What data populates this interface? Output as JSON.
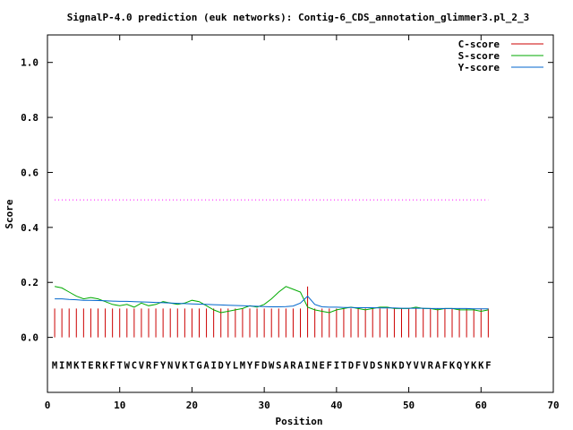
{
  "chart_data": {
    "type": "line",
    "title": "SignalP-4.0 prediction (euk networks): Contig-6_CDS_annotation_glimmer3.pl_2_3",
    "xlabel": "Position",
    "ylabel": "Score",
    "xlim": [
      0,
      70
    ],
    "ylim": [
      -0.2,
      1.1
    ],
    "xticks": [
      0,
      10,
      20,
      30,
      40,
      50,
      60,
      70
    ],
    "yticks": [
      0.0,
      0.2,
      0.4,
      0.6,
      0.8,
      1.0
    ],
    "xtick_labels": [
      "0",
      "10",
      "20",
      "30",
      "40",
      "50",
      "60",
      "70"
    ],
    "ytick_labels": [
      "0.0",
      "0.2",
      "0.4",
      "0.6",
      "0.8",
      "1.0"
    ],
    "threshold": 0.5,
    "threshold_style": "dotted magenta line",
    "legend_position": "top-right",
    "sequence": "MIMKTERKFTWCVRFYNVKTGAIDYLMYFDWSARAINEFITDFVDSNKDYVVRAFKQYKKF",
    "sequence_y": -0.1,
    "series": [
      {
        "name": "C-score",
        "color": "#cc0000",
        "style": "impulses",
        "x": [
          1,
          2,
          3,
          4,
          5,
          6,
          7,
          8,
          9,
          10,
          11,
          12,
          13,
          14,
          15,
          16,
          17,
          18,
          19,
          20,
          21,
          22,
          23,
          24,
          25,
          26,
          27,
          28,
          29,
          30,
          31,
          32,
          33,
          34,
          35,
          36,
          37,
          38,
          39,
          40,
          41,
          42,
          43,
          44,
          45,
          46,
          47,
          48,
          49,
          50,
          51,
          52,
          53,
          54,
          55,
          56,
          57,
          58,
          59,
          60,
          61
        ],
        "values": [
          0.105,
          0.105,
          0.105,
          0.105,
          0.105,
          0.105,
          0.105,
          0.105,
          0.105,
          0.105,
          0.105,
          0.105,
          0.105,
          0.105,
          0.105,
          0.105,
          0.105,
          0.105,
          0.105,
          0.105,
          0.105,
          0.105,
          0.105,
          0.105,
          0.105,
          0.105,
          0.105,
          0.105,
          0.105,
          0.105,
          0.105,
          0.105,
          0.105,
          0.105,
          0.105,
          0.185,
          0.105,
          0.105,
          0.105,
          0.105,
          0.105,
          0.105,
          0.105,
          0.105,
          0.105,
          0.105,
          0.105,
          0.105,
          0.105,
          0.105,
          0.105,
          0.105,
          0.105,
          0.105,
          0.105,
          0.105,
          0.105,
          0.105,
          0.105,
          0.105,
          0.105
        ]
      },
      {
        "name": "S-score",
        "color": "#00aa00",
        "style": "line",
        "x": [
          1,
          2,
          3,
          4,
          5,
          6,
          7,
          8,
          9,
          10,
          11,
          12,
          13,
          14,
          15,
          16,
          17,
          18,
          19,
          20,
          21,
          22,
          23,
          24,
          25,
          26,
          27,
          28,
          29,
          30,
          31,
          32,
          33,
          34,
          35,
          36,
          37,
          38,
          39,
          40,
          41,
          42,
          43,
          44,
          45,
          46,
          47,
          48,
          49,
          50,
          51,
          52,
          53,
          54,
          55,
          56,
          57,
          58,
          59,
          60,
          61
        ],
        "values": [
          0.185,
          0.18,
          0.165,
          0.15,
          0.14,
          0.145,
          0.14,
          0.13,
          0.12,
          0.115,
          0.12,
          0.11,
          0.125,
          0.115,
          0.12,
          0.13,
          0.125,
          0.12,
          0.125,
          0.135,
          0.13,
          0.115,
          0.1,
          0.09,
          0.095,
          0.1,
          0.105,
          0.115,
          0.11,
          0.12,
          0.14,
          0.165,
          0.185,
          0.175,
          0.165,
          0.11,
          0.1,
          0.095,
          0.09,
          0.1,
          0.105,
          0.11,
          0.105,
          0.1,
          0.105,
          0.11,
          0.11,
          0.105,
          0.105,
          0.105,
          0.11,
          0.105,
          0.105,
          0.1,
          0.105,
          0.105,
          0.1,
          0.1,
          0.1,
          0.095,
          0.1
        ]
      },
      {
        "name": "Y-score",
        "color": "#0066cc",
        "style": "line",
        "x": [
          1,
          2,
          3,
          4,
          5,
          6,
          7,
          8,
          9,
          10,
          11,
          12,
          13,
          14,
          15,
          16,
          17,
          18,
          19,
          20,
          21,
          22,
          23,
          24,
          25,
          26,
          27,
          28,
          29,
          30,
          31,
          32,
          33,
          34,
          35,
          36,
          37,
          38,
          39,
          40,
          41,
          42,
          43,
          44,
          45,
          46,
          47,
          48,
          49,
          50,
          51,
          52,
          53,
          54,
          55,
          56,
          57,
          58,
          59,
          60,
          61
        ],
        "values": [
          0.14,
          0.14,
          0.138,
          0.137,
          0.135,
          0.135,
          0.134,
          0.133,
          0.132,
          0.131,
          0.131,
          0.13,
          0.129,
          0.128,
          0.127,
          0.126,
          0.125,
          0.124,
          0.123,
          0.122,
          0.121,
          0.12,
          0.119,
          0.118,
          0.117,
          0.116,
          0.115,
          0.114,
          0.113,
          0.112,
          0.111,
          0.111,
          0.112,
          0.114,
          0.125,
          0.15,
          0.12,
          0.111,
          0.11,
          0.11,
          0.109,
          0.109,
          0.108,
          0.108,
          0.108,
          0.107,
          0.107,
          0.107,
          0.106,
          0.106,
          0.106,
          0.106,
          0.105,
          0.105,
          0.105,
          0.105,
          0.105,
          0.105,
          0.104,
          0.104,
          0.104
        ]
      }
    ]
  }
}
